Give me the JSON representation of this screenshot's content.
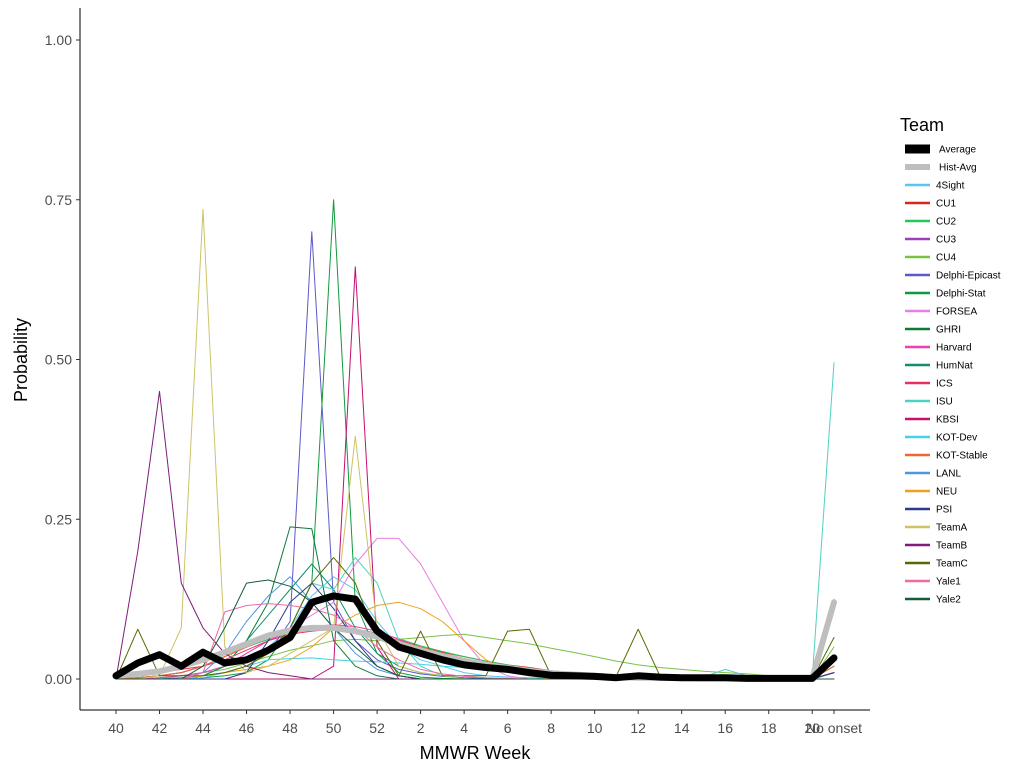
{
  "chart_data": {
    "type": "line",
    "title": "",
    "xlabel": "MMWR Week",
    "ylabel": "Probability",
    "ylim": [
      0,
      1
    ],
    "grid": false,
    "legend_position": "right",
    "legend_title": "Team",
    "categories": [
      "40",
      "41",
      "42",
      "43",
      "44",
      "45",
      "46",
      "47",
      "48",
      "49",
      "50",
      "51",
      "52",
      "1",
      "2",
      "3",
      "4",
      "5",
      "6",
      "7",
      "8",
      "9",
      "10",
      "11",
      "12",
      "13",
      "14",
      "15",
      "16",
      "17",
      "18",
      "19",
      "20",
      "No onset"
    ],
    "x_tick_labels": [
      "40",
      "42",
      "44",
      "46",
      "48",
      "50",
      "52",
      "2",
      "4",
      "6",
      "8",
      "10",
      "12",
      "14",
      "16",
      "18",
      "20",
      "No onset"
    ],
    "y_tick_labels": [
      "0.00",
      "0.25",
      "0.50",
      "0.75",
      "1.00"
    ],
    "y_ticks": [
      0,
      0.25,
      0.5,
      0.75,
      1.0
    ],
    "series": [
      {
        "name": "Average",
        "color": "#000000",
        "width": 7,
        "values": [
          0.005,
          0.025,
          0.038,
          0.02,
          0.042,
          0.025,
          0.03,
          0.045,
          0.065,
          0.12,
          0.13,
          0.125,
          0.075,
          0.05,
          0.04,
          0.03,
          0.022,
          0.018,
          0.015,
          0.01,
          0.006,
          0.005,
          0.004,
          0.002,
          0.005,
          0.003,
          0.002,
          0.002,
          0.002,
          0.001,
          0.001,
          0.001,
          0.001,
          0.033
        ]
      },
      {
        "name": "Hist-Avg",
        "color": "#bebebe",
        "width": 6,
        "values": [
          0.005,
          0.008,
          0.012,
          0.02,
          0.03,
          0.042,
          0.055,
          0.068,
          0.076,
          0.08,
          0.08,
          0.075,
          0.066,
          0.055,
          0.045,
          0.036,
          0.028,
          0.022,
          0.017,
          0.013,
          0.009,
          0.007,
          0.005,
          0.003,
          0.002,
          0.002,
          0.002,
          0.001,
          0.001,
          0.001,
          0.001,
          0.001,
          0.001,
          0.12
        ]
      },
      {
        "name": "4Sight",
        "color": "#56c8ef",
        "width": 1,
        "values": [
          0,
          0,
          0,
          0.005,
          0.01,
          0.02,
          0.03,
          0.05,
          0.08,
          0.13,
          0.16,
          0.14,
          0.09,
          0.05,
          0.03,
          0.02,
          0.01,
          0.005,
          0.003,
          0.002,
          0.001,
          0,
          0,
          0,
          0,
          0,
          0,
          0,
          0,
          0,
          0,
          0,
          0,
          0.12
        ]
      },
      {
        "name": "CU1",
        "color": "#d7261e",
        "width": 1,
        "values": [
          0,
          0.002,
          0.005,
          0.01,
          0.02,
          0.035,
          0.05,
          0.065,
          0.075,
          0.08,
          0.08,
          0.076,
          0.07,
          0.06,
          0.05,
          0.042,
          0.035,
          0.028,
          0.022,
          0.018,
          0.013,
          0.01,
          0.007,
          0.005,
          0.003,
          0.002,
          0.002,
          0.001,
          0.001,
          0.001,
          0,
          0,
          0,
          0.01
        ]
      },
      {
        "name": "CU2",
        "color": "#25c55a",
        "width": 1,
        "values": [
          0,
          0.002,
          0.005,
          0.01,
          0.02,
          0.035,
          0.05,
          0.062,
          0.072,
          0.078,
          0.08,
          0.078,
          0.072,
          0.063,
          0.052,
          0.043,
          0.035,
          0.028,
          0.022,
          0.016,
          0.011,
          0.008,
          0.005,
          0.003,
          0.002,
          0.001,
          0.001,
          0,
          0,
          0,
          0,
          0,
          0,
          0.01
        ]
      },
      {
        "name": "CU3",
        "color": "#9c3fbd",
        "width": 1,
        "values": [
          0,
          0.002,
          0.005,
          0.01,
          0.02,
          0.035,
          0.05,
          0.065,
          0.075,
          0.08,
          0.082,
          0.078,
          0.07,
          0.06,
          0.05,
          0.04,
          0.032,
          0.025,
          0.018,
          0.013,
          0.009,
          0.006,
          0.004,
          0.002,
          0.001,
          0.001,
          0,
          0,
          0,
          0,
          0,
          0,
          0,
          0.01
        ]
      },
      {
        "name": "CU4",
        "color": "#7ac143",
        "width": 1,
        "values": [
          0,
          0,
          0.002,
          0.005,
          0.01,
          0.015,
          0.025,
          0.035,
          0.045,
          0.052,
          0.06,
          0.062,
          0.06,
          0.062,
          0.065,
          0.068,
          0.07,
          0.065,
          0.06,
          0.055,
          0.048,
          0.042,
          0.035,
          0.028,
          0.022,
          0.018,
          0.015,
          0.012,
          0.01,
          0.008,
          0.005,
          0.003,
          0,
          0.05
        ]
      },
      {
        "name": "Delphi-Epicast",
        "color": "#5a5acb",
        "width": 1,
        "values": [
          0,
          0,
          0,
          0.002,
          0.005,
          0.01,
          0.02,
          0.04,
          0.09,
          0.7,
          0.12,
          0.06,
          0.03,
          0.015,
          0.008,
          0.004,
          0.002,
          0.001,
          0,
          0,
          0,
          0,
          0,
          0,
          0,
          0,
          0,
          0,
          0,
          0,
          0,
          0,
          0,
          0.01
        ]
      },
      {
        "name": "Delphi-Stat",
        "color": "#0f9a3f",
        "width": 1,
        "values": [
          0,
          0,
          0,
          0,
          0.002,
          0.005,
          0.01,
          0.03,
          0.08,
          0.15,
          0.75,
          0.12,
          0.04,
          0.01,
          0.003,
          0.001,
          0,
          0,
          0,
          0,
          0,
          0,
          0,
          0,
          0,
          0,
          0,
          0,
          0,
          0,
          0,
          0,
          0,
          0.02
        ]
      },
      {
        "name": "FORSEA",
        "color": "#e97ee3",
        "width": 1,
        "values": [
          0,
          0,
          0,
          0,
          0.005,
          0.02,
          0.04,
          0.06,
          0.08,
          0.1,
          0.12,
          0.18,
          0.22,
          0.22,
          0.18,
          0.12,
          0.06,
          0.02,
          0.005,
          0,
          0,
          0,
          0,
          0,
          0,
          0,
          0,
          0,
          0,
          0,
          0,
          0,
          0,
          0
        ]
      },
      {
        "name": "GHRI",
        "color": "#0d7a3a",
        "width": 1,
        "values": [
          0,
          0,
          0,
          0,
          0.005,
          0.02,
          0.06,
          0.12,
          0.238,
          0.235,
          0.06,
          0.02,
          0.005,
          0,
          0,
          0,
          0,
          0,
          0,
          0,
          0,
          0,
          0,
          0,
          0,
          0,
          0,
          0,
          0,
          0,
          0,
          0,
          0,
          0
        ]
      },
      {
        "name": "Harvard",
        "color": "#ec3fb0",
        "width": 1,
        "values": [
          0,
          0,
          0.002,
          0.005,
          0.01,
          0.02,
          0.04,
          0.06,
          0.075,
          0.082,
          0.085,
          0.082,
          0.075,
          0.062,
          0.05,
          0.04,
          0.03,
          0.022,
          0.015,
          0.01,
          0.006,
          0.004,
          0.002,
          0.001,
          0,
          0,
          0,
          0,
          0,
          0,
          0,
          0,
          0,
          0.01
        ]
      },
      {
        "name": "HumNat",
        "color": "#11906b",
        "width": 1,
        "values": [
          0,
          0,
          0,
          0,
          0.005,
          0.02,
          0.06,
          0.1,
          0.14,
          0.18,
          0.14,
          0.08,
          0.04,
          0.02,
          0.01,
          0.005,
          0,
          0,
          0,
          0,
          0,
          0,
          0,
          0,
          0,
          0,
          0,
          0,
          0,
          0,
          0,
          0,
          0,
          0
        ]
      },
      {
        "name": "ICS",
        "color": "#e8305e",
        "width": 1,
        "values": [
          0,
          0.005,
          0.01,
          0.015,
          0.02,
          0.03,
          0.045,
          0.06,
          0.07,
          0.075,
          0.078,
          0.075,
          0.068,
          0.058,
          0.048,
          0.04,
          0.032,
          0.025,
          0.019,
          0.014,
          0.01,
          0.007,
          0.005,
          0.003,
          0.002,
          0.001,
          0,
          0,
          0,
          0,
          0,
          0,
          0,
          0.01
        ]
      },
      {
        "name": "ISU",
        "color": "#4fd1c0",
        "width": 1,
        "values": [
          0,
          0,
          0,
          0,
          0.005,
          0.01,
          0.02,
          0.04,
          0.08,
          0.15,
          0.14,
          0.19,
          0.15,
          0.06,
          0.02,
          0.005,
          0,
          0,
          0,
          0,
          0,
          0,
          0,
          0,
          0,
          0,
          0,
          0.003,
          0.015,
          0.005,
          0,
          0,
          0,
          0.495
        ]
      },
      {
        "name": "KBSI",
        "color": "#c4106f",
        "width": 1,
        "values": [
          0,
          0,
          0,
          0,
          0,
          0,
          0,
          0,
          0,
          0,
          0.02,
          0.645,
          0.05,
          0,
          0,
          0,
          0,
          0,
          0,
          0,
          0,
          0,
          0,
          0,
          0,
          0,
          0,
          0,
          0,
          0,
          0,
          0,
          0,
          0
        ]
      },
      {
        "name": "KOT-Dev",
        "color": "#43d3e6",
        "width": 1,
        "values": [
          0,
          0,
          0,
          0,
          0.002,
          0.01,
          0.02,
          0.03,
          0.032,
          0.033,
          0.03,
          0.028,
          0.027,
          0.025,
          0.023,
          0.02,
          0.018,
          0.015,
          0.012,
          0.01,
          0.008,
          0.006,
          0.004,
          0.003,
          0.003,
          0.002,
          0.002,
          0.002,
          0.002,
          0.002,
          0.001,
          0.001,
          0,
          0.12
        ]
      },
      {
        "name": "KOT-Stable",
        "color": "#ee6a2c",
        "width": 1,
        "values": [
          0,
          0.002,
          0.005,
          0.01,
          0.02,
          0.035,
          0.05,
          0.065,
          0.075,
          0.08,
          0.08,
          0.076,
          0.07,
          0.06,
          0.05,
          0.04,
          0.032,
          0.025,
          0.018,
          0.013,
          0.009,
          0.006,
          0.004,
          0.002,
          0.001,
          0.001,
          0,
          0,
          0,
          0,
          0,
          0,
          0,
          0.02
        ]
      },
      {
        "name": "LANL",
        "color": "#4b96e6",
        "width": 1,
        "values": [
          0,
          0,
          0,
          0,
          0.01,
          0.04,
          0.09,
          0.13,
          0.16,
          0.12,
          0.08,
          0.04,
          0.015,
          0.005,
          0,
          0,
          0,
          0,
          0,
          0,
          0,
          0,
          0,
          0,
          0,
          0,
          0,
          0,
          0,
          0,
          0,
          0,
          0,
          0
        ]
      },
      {
        "name": "NEU",
        "color": "#f0a01e",
        "width": 1,
        "values": [
          0,
          0,
          0,
          0,
          0.005,
          0.01,
          0.015,
          0.02,
          0.03,
          0.05,
          0.08,
          0.1,
          0.115,
          0.12,
          0.11,
          0.09,
          0.06,
          0.03,
          0.015,
          0.005,
          0,
          0,
          0,
          0,
          0,
          0,
          0,
          0,
          0,
          0,
          0,
          0,
          0,
          0
        ]
      },
      {
        "name": "PSI",
        "color": "#2c3a8c",
        "width": 1,
        "values": [
          0,
          0,
          0,
          0,
          0,
          0,
          0.01,
          0.06,
          0.12,
          0.15,
          0.11,
          0.06,
          0.02,
          0.005,
          0,
          0,
          0,
          0,
          0,
          0,
          0,
          0,
          0,
          0,
          0,
          0,
          0,
          0,
          0,
          0,
          0,
          0,
          0,
          0.01
        ]
      },
      {
        "name": "TeamA",
        "color": "#cdc364",
        "width": 1,
        "values": [
          0,
          0,
          0.005,
          0.08,
          0.735,
          0.05,
          0.01,
          0.02,
          0.04,
          0.06,
          0.08,
          0.38,
          0.08,
          0.02,
          0.01,
          0.005,
          0,
          0,
          0,
          0,
          0,
          0,
          0,
          0,
          0,
          0,
          0,
          0,
          0,
          0,
          0,
          0,
          0,
          0.125
        ]
      },
      {
        "name": "TeamB",
        "color": "#7e1d7a",
        "width": 1,
        "values": [
          0,
          0.2,
          0.45,
          0.15,
          0.08,
          0.04,
          0.02,
          0.01,
          0.005,
          0,
          0,
          0,
          0,
          0,
          0,
          0,
          0,
          0,
          0,
          0,
          0,
          0,
          0,
          0,
          0,
          0,
          0,
          0,
          0,
          0,
          0,
          0,
          0,
          0
        ]
      },
      {
        "name": "TeamC",
        "color": "#556b00",
        "width": 1,
        "values": [
          0,
          0.078,
          0.005,
          0.005,
          0.005,
          0.01,
          0.02,
          0.04,
          0.08,
          0.15,
          0.19,
          0.15,
          0.06,
          0.005,
          0.075,
          0.005,
          0.005,
          0.005,
          0.075,
          0.078,
          0.005,
          0.005,
          0.005,
          0.005,
          0.078,
          0.005,
          0.005,
          0.005,
          0.005,
          0.005,
          0.005,
          0.005,
          0,
          0.065
        ]
      },
      {
        "name": "Yale1",
        "color": "#f06aa5",
        "width": 1,
        "values": [
          0,
          0,
          0,
          0,
          0.01,
          0.105,
          0.115,
          0.118,
          0.115,
          0.11,
          0.1,
          0.08,
          0.05,
          0.03,
          0.015,
          0.008,
          0.004,
          0.002,
          0.001,
          0,
          0,
          0,
          0,
          0,
          0,
          0,
          0,
          0,
          0,
          0,
          0,
          0,
          0,
          0
        ]
      },
      {
        "name": "Yale2",
        "color": "#165c3c",
        "width": 1,
        "values": [
          0,
          0,
          0,
          0,
          0.02,
          0.08,
          0.15,
          0.155,
          0.145,
          0.12,
          0.08,
          0.05,
          0.02,
          0.005,
          0,
          0,
          0,
          0,
          0,
          0,
          0,
          0,
          0,
          0,
          0,
          0,
          0,
          0,
          0,
          0,
          0,
          0,
          0,
          0
        ]
      }
    ]
  }
}
